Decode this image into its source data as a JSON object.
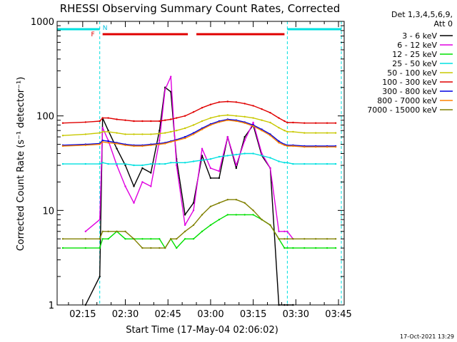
{
  "chart_data": {
    "type": "line",
    "title": "RHESSI Observing Summary Count Rates, Corrected",
    "xlabel": "Start Time (17-May-04 02:06:02)",
    "ylabel": "Corrected Count Rate (s⁻¹ detector⁻¹)",
    "yscale": "log",
    "ylim": [
      1,
      1000
    ],
    "xlim": [
      "02:06",
      "03:47"
    ],
    "x_ticks": [
      "02:15",
      "02:30",
      "02:45",
      "03:00",
      "03:15",
      "03:30",
      "03:45"
    ],
    "y_ticks": [
      "1",
      "10",
      "100",
      "1000"
    ],
    "legend_header": [
      "Det 1,3,4,5,6,9,",
      "Att 0"
    ],
    "legend_position": "right",
    "x": [
      "02:08",
      "02:16",
      "02:21",
      "02:22",
      "02:24",
      "02:27",
      "02:30",
      "02:33",
      "02:36",
      "02:39",
      "02:42",
      "02:44",
      "02:46",
      "02:48",
      "02:51",
      "02:54",
      "02:57",
      "03:00",
      "03:03",
      "03:06",
      "03:09",
      "03:12",
      "03:15",
      "03:18",
      "03:21",
      "03:24",
      "03:26",
      "03:27",
      "03:29",
      "03:33",
      "03:37",
      "03:41",
      "03:44"
    ],
    "series": [
      {
        "name": "3 - 6 keV",
        "color": "#000000",
        "values": [
          null,
          1,
          2,
          95,
          70,
          45,
          30,
          18,
          28,
          25,
          70,
          200,
          180,
          35,
          9,
          12,
          38,
          22,
          22,
          60,
          28,
          60,
          80,
          38,
          28,
          1,
          1,
          1,
          1,
          null,
          null,
          null,
          null
        ]
      },
      {
        "name": "6 - 12 keV",
        "color": "#e000e0",
        "values": [
          null,
          6,
          8,
          75,
          55,
          30,
          18,
          12,
          20,
          18,
          55,
          190,
          260,
          30,
          7,
          10,
          45,
          28,
          26,
          60,
          30,
          55,
          85,
          40,
          28,
          6,
          6,
          6,
          5,
          null,
          null,
          null,
          null
        ]
      },
      {
        "name": "12 - 25 keV",
        "color": "#00e000",
        "values": [
          4,
          4,
          4,
          5,
          5,
          6,
          5,
          5,
          5,
          5,
          5,
          4,
          5,
          4,
          5,
          5,
          6,
          7,
          8,
          9,
          9,
          9,
          9,
          8,
          7,
          5,
          4,
          4,
          4,
          4,
          4,
          4,
          4
        ]
      },
      {
        "name": "25 - 50 keV",
        "color": "#00e0e0",
        "values": [
          31,
          31,
          31,
          32,
          31,
          31,
          31,
          30,
          30,
          31,
          31,
          31,
          32,
          32,
          32,
          33,
          34,
          35,
          37,
          38,
          39,
          40,
          40,
          38,
          36,
          33,
          32,
          32,
          31,
          31,
          31,
          31,
          31
        ]
      },
      {
        "name": "50 - 100 keV",
        "color": "#c8c800",
        "values": [
          62,
          64,
          66,
          68,
          68,
          66,
          64,
          64,
          64,
          64,
          65,
          66,
          68,
          70,
          74,
          80,
          88,
          95,
          100,
          102,
          100,
          98,
          95,
          90,
          85,
          75,
          70,
          68,
          68,
          66,
          66,
          66,
          66
        ]
      },
      {
        "name": "100 - 300 keV",
        "color": "#e00000",
        "values": [
          84,
          86,
          88,
          95,
          95,
          92,
          90,
          88,
          88,
          88,
          88,
          90,
          92,
          95,
          100,
          110,
          122,
          132,
          140,
          142,
          140,
          135,
          128,
          118,
          108,
          95,
          88,
          85,
          85,
          84,
          84,
          84,
          84
        ]
      },
      {
        "name": "300 - 800 keV",
        "color": "#0000e0",
        "values": [
          49,
          50,
          51,
          55,
          54,
          52,
          50,
          49,
          49,
          50,
          51,
          52,
          54,
          56,
          60,
          66,
          74,
          82,
          88,
          92,
          90,
          86,
          80,
          72,
          64,
          54,
          50,
          49,
          49,
          48,
          48,
          48,
          48
        ]
      },
      {
        "name": "800 - 7000 keV",
        "color": "#ff8000",
        "values": [
          48,
          49,
          50,
          53,
          52,
          51,
          49,
          48,
          48,
          49,
          50,
          51,
          53,
          55,
          58,
          64,
          72,
          80,
          86,
          90,
          88,
          84,
          78,
          70,
          62,
          52,
          49,
          48,
          48,
          47,
          47,
          47,
          47
        ]
      },
      {
        "name": "7000 - 15000 keV",
        "color": "#808000",
        "values": [
          5,
          5,
          5,
          6,
          6,
          6,
          6,
          5,
          4,
          4,
          4,
          4,
          5,
          5,
          6,
          7,
          9,
          11,
          12,
          13,
          13,
          12,
          10,
          8,
          7,
          5,
          5,
          5,
          5,
          5,
          5,
          5,
          5
        ]
      }
    ],
    "overlays": {
      "flags": [
        "F",
        "N"
      ],
      "eclipse_intervals": [
        [
          "02:06",
          "02:21"
        ],
        [
          "03:27",
          "03:46"
        ]
      ],
      "flare_intervals": [
        [
          "02:22",
          "02:52"
        ],
        [
          "02:55",
          "03:26"
        ]
      ]
    },
    "footer_date": "17-Oct-2021 13:29"
  }
}
